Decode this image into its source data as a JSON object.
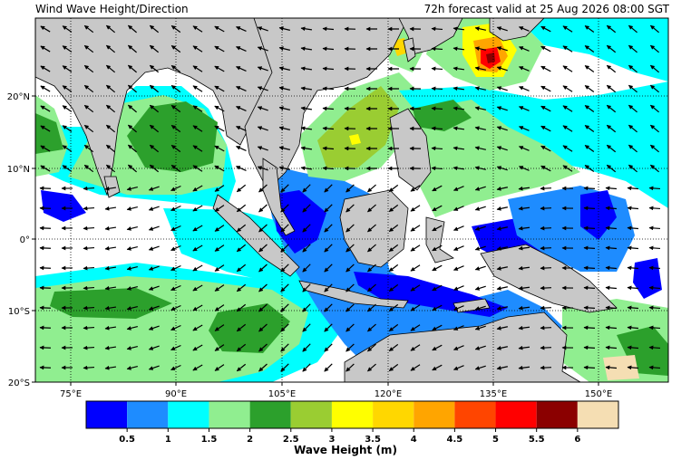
{
  "header": {
    "title": "Wind Wave Height/Direction",
    "valid": "72h forecast valid at 25 Aug 2026 08:00 SGT"
  },
  "map": {
    "lon_ticks": [
      "75°E",
      "90°E",
      "105°E",
      "120°E",
      "135°E",
      "150°E"
    ],
    "lat_ticks": [
      "20°N",
      "10°N",
      "0°",
      "10°S",
      "20°S"
    ],
    "land_color": "#c8c8c8",
    "sea_no_data_color": "#ffffff"
  },
  "colorbar": {
    "label": "Wave Height (m)",
    "ticks": [
      "0.5",
      "1",
      "1.5",
      "2",
      "2.5",
      "3",
      "3.5",
      "4",
      "4.5",
      "5",
      "5.5",
      "6"
    ],
    "colors": [
      "#0000ff",
      "#1e8cff",
      "#00ffff",
      "#90ee90",
      "#2ca02c",
      "#9acd32",
      "#ffff00",
      "#ffd700",
      "#ffa500",
      "#ff4500",
      "#ff0000",
      "#8b0000",
      "#f5deb3"
    ]
  }
}
